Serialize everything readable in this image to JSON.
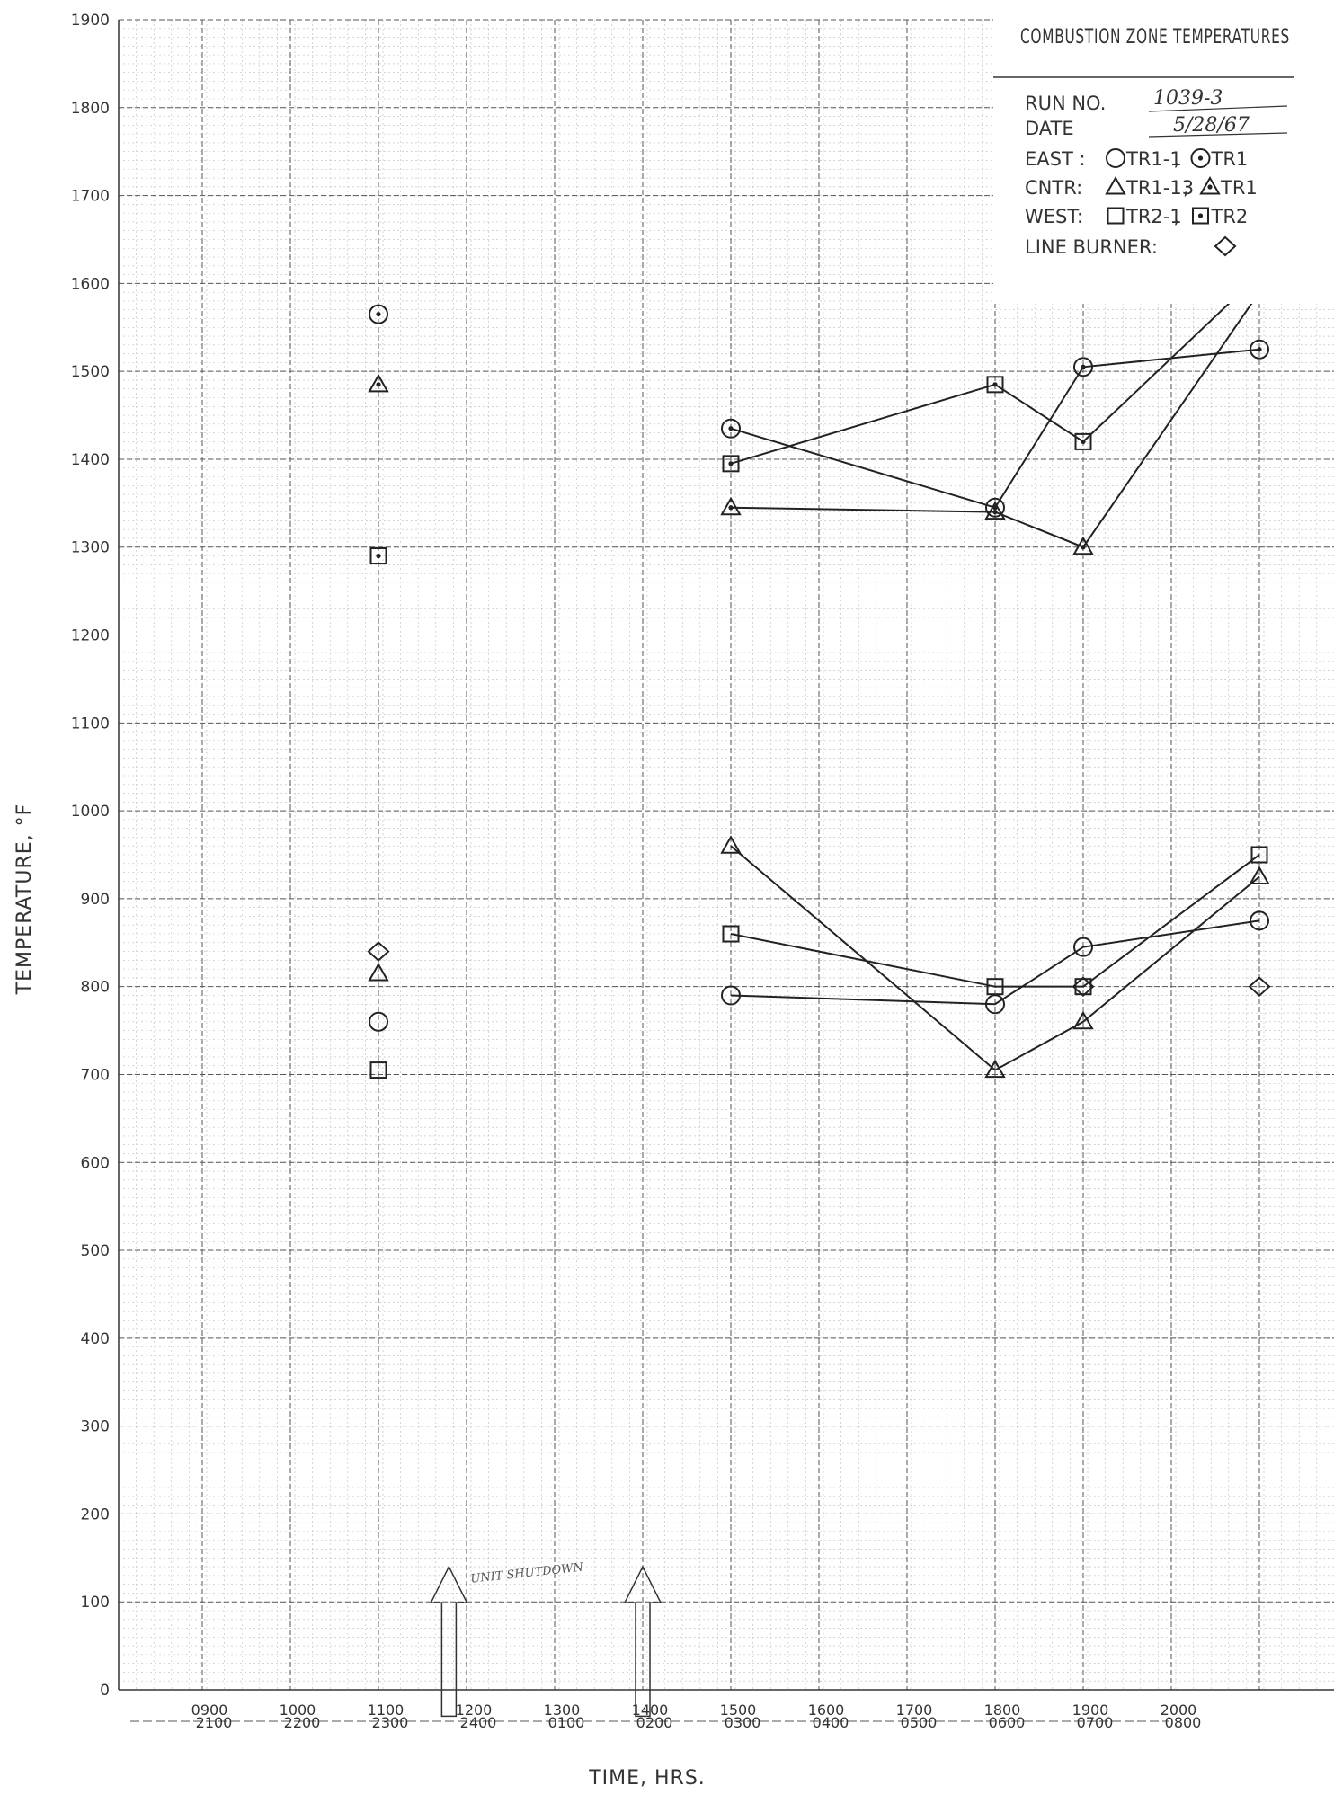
{
  "chart_data": {
    "type": "line",
    "title": "COMBUSTION ZONE TEMPERATURES",
    "run_label": "RUN NO.",
    "run_no": "1039-3",
    "date_label": "DATE",
    "date": "5/28/67",
    "xlabel": "TIME, HRS.",
    "ylabel": "TEMPERATURE, °F",
    "ylim": [
      0,
      1900
    ],
    "xlim": [
      900,
      2000
    ],
    "grid": true,
    "legend_position": "top-right",
    "yticks": [
      {
        "value": 0,
        "label": "0"
      },
      {
        "value": 100,
        "label": "100"
      },
      {
        "value": 200,
        "label": "200"
      },
      {
        "value": 300,
        "label": "300"
      },
      {
        "value": 400,
        "label": "400"
      },
      {
        "value": 500,
        "label": "500"
      },
      {
        "value": 600,
        "label": "600"
      },
      {
        "value": 700,
        "label": "700"
      },
      {
        "value": 800,
        "label": "800"
      },
      {
        "value": 900,
        "label": "900"
      },
      {
        "value": 1000,
        "label": "1000"
      },
      {
        "value": 1100,
        "label": "1100"
      },
      {
        "value": 1200,
        "label": "1200"
      },
      {
        "value": 1300,
        "label": "1300"
      },
      {
        "value": 1400,
        "label": "1400"
      },
      {
        "value": 1500,
        "label": "1500"
      },
      {
        "value": 1600,
        "label": "1600"
      },
      {
        "value": 1700,
        "label": "1700"
      },
      {
        "value": 1800,
        "label": "1800"
      },
      {
        "value": 1900,
        "label": "1900"
      }
    ],
    "xticks": [
      {
        "value": 900,
        "label": "0900",
        "label2": "2100"
      },
      {
        "value": 1000,
        "label": "1000",
        "label2": "2200"
      },
      {
        "value": 1100,
        "label": "1100",
        "label2": "2300"
      },
      {
        "value": 1200,
        "label": "1200",
        "label2": "2400"
      },
      {
        "value": 1300,
        "label": "1300",
        "label2": "0100"
      },
      {
        "value": 1400,
        "label": "1400",
        "label2": "0200"
      },
      {
        "value": 1500,
        "label": "1500",
        "label2": "0300"
      },
      {
        "value": 1600,
        "label": "1600",
        "label2": "0400"
      },
      {
        "value": 1700,
        "label": "1700",
        "label2": "0500"
      },
      {
        "value": 1800,
        "label": "1800",
        "label2": "0600"
      },
      {
        "value": 1900,
        "label": "1900",
        "label2": "0700"
      },
      {
        "value": 2000,
        "label": "2000",
        "label2": "0800"
      }
    ],
    "legend": [
      {
        "label": "EAST :",
        "entries": [
          {
            "marker": "circle",
            "text": "TR1-1"
          },
          {
            "marker": "circle-dot",
            "text": "TR1"
          }
        ]
      },
      {
        "label": "CNTR:",
        "entries": [
          {
            "marker": "triangle",
            "text": "TR1-13"
          },
          {
            "marker": "triangle-dot",
            "text": "TR1"
          }
        ]
      },
      {
        "label": "WEST:",
        "entries": [
          {
            "marker": "square",
            "text": "TR2-1"
          },
          {
            "marker": "square-dot",
            "text": "TR2"
          }
        ]
      },
      {
        "label": "LINE BURNER:",
        "entries": [
          {
            "marker": "diamond",
            "text": ""
          }
        ]
      }
    ],
    "series": [
      {
        "marker": "circle-dot",
        "connected": true,
        "x": [
          1400,
          1700,
          1800,
          2000
        ],
        "y": [
          1435,
          1345,
          1505,
          1525
        ]
      },
      {
        "marker": "triangle-dot",
        "connected": true,
        "x": [
          1400,
          1700,
          1800,
          2000
        ],
        "y": [
          1345,
          1340,
          1300,
          1590
        ]
      },
      {
        "marker": "square-dot",
        "connected": true,
        "x": [
          1400,
          1700,
          1800,
          2000
        ],
        "y": [
          1395,
          1485,
          1420,
          1610
        ]
      },
      {
        "marker": "circle",
        "connected": true,
        "x": [
          1400,
          1700,
          1800,
          2000
        ],
        "y": [
          790,
          780,
          845,
          875
        ]
      },
      {
        "marker": "triangle",
        "connected": true,
        "x": [
          1400,
          1700,
          1800,
          2000
        ],
        "y": [
          960,
          705,
          760,
          925
        ]
      },
      {
        "marker": "square",
        "connected": true,
        "x": [
          1400,
          1700,
          1800,
          2000
        ],
        "y": [
          860,
          800,
          800,
          950
        ]
      },
      {
        "marker": "diamond",
        "connected": false,
        "x": [
          1000,
          1800,
          2000
        ],
        "y": [
          840,
          800,
          800
        ]
      },
      {
        "marker": "circle-dot",
        "connected": false,
        "x": [
          1000
        ],
        "y": [
          1565
        ]
      },
      {
        "marker": "triangle-dot",
        "connected": false,
        "x": [
          1000
        ],
        "y": [
          1485
        ]
      },
      {
        "marker": "square-dot",
        "connected": false,
        "x": [
          1000
        ],
        "y": [
          1290
        ]
      },
      {
        "marker": "circle",
        "connected": false,
        "x": [
          1000
        ],
        "y": [
          760
        ]
      },
      {
        "marker": "triangle",
        "connected": false,
        "x": [
          1000
        ],
        "y": [
          815
        ]
      },
      {
        "marker": "square",
        "connected": false,
        "x": [
          1000
        ],
        "y": [
          705
        ]
      }
    ],
    "annotations": {
      "note": "UNIT SHUTDOWN",
      "arrows_at": [
        1080,
        1300
      ]
    }
  }
}
